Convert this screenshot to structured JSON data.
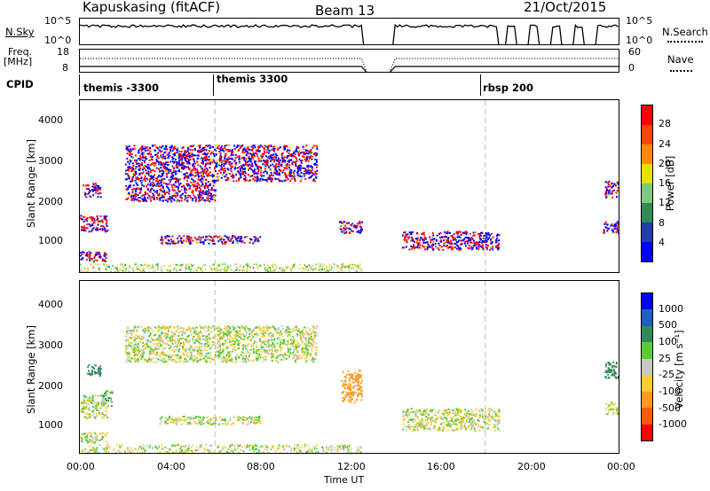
{
  "header": {
    "station": "Kapuskasing (fitACF)",
    "beam": "Beam 13",
    "date": "21/Oct/2015"
  },
  "top_panels": {
    "nsky_label": "N.Sky",
    "nsky_ticks": [
      "10^5",
      "10^0"
    ],
    "nsearch_label": "N.Search",
    "nsearch_ticks": [
      "10^5",
      "10^0"
    ],
    "freq_label_line1": "Freq.",
    "freq_label_line2": "[MHz]",
    "freq_ticks": [
      "18",
      "8"
    ],
    "nave_label": "Nave",
    "nave_ticks": [
      "60",
      "0"
    ],
    "cpid_label": "CPID",
    "cpid_entries": [
      "themis -3300",
      "themis 3300",
      "rbsp 200"
    ]
  },
  "axes": {
    "ylabel": "Slant Range [km]",
    "xlabel": "Time UT",
    "y_ticks": [
      "4000",
      "3000",
      "2000",
      "1000"
    ],
    "x_ticks": [
      "00:00",
      "04:00",
      "08:00",
      "12:00",
      "16:00",
      "20:00",
      "00:00"
    ]
  },
  "colorbars": {
    "power_label": "Power [dB]",
    "power_ticks": [
      "28",
      "24",
      "20",
      "16",
      "12",
      "8",
      "4"
    ],
    "power_colors": [
      "#0000ff",
      "#1f3fa6",
      "#2e8b57",
      "#7fc97f",
      "#e8e000",
      "#ff8c00",
      "#ff4500",
      "#ff0000"
    ],
    "velocity_label": "Velocity [m s⁻¹]",
    "velocity_ticks": [
      "1000",
      "500",
      "100",
      "25",
      "-25",
      "-100",
      "-500",
      "-1000"
    ],
    "velocity_colors": [
      "#0000ff",
      "#1f5fbf",
      "#2e8b57",
      "#55cc33",
      "#c8c8c0",
      "#ffcc33",
      "#ff9922",
      "#ff5a00",
      "#ff0000"
    ]
  },
  "chart_data": {
    "type": "heatmap",
    "x_range_hours": [
      0,
      24
    ],
    "y_range_km": [
      180,
      4500
    ],
    "cpid_change_times_hours": [
      6,
      18
    ],
    "data_gap_hours": [
      12.5,
      13.9
    ],
    "power_features": [
      {
        "t0": 0.0,
        "t1": 1.2,
        "r0": 500,
        "r1": 750,
        "power_db": 28
      },
      {
        "t0": 0.0,
        "t1": 1.2,
        "r0": 1250,
        "r1": 1650,
        "power_db": 20
      },
      {
        "t0": 0.1,
        "t1": 0.9,
        "r0": 2100,
        "r1": 2450,
        "power_db": 16
      },
      {
        "t0": 2.0,
        "t1": 6.0,
        "r0": 2000,
        "r1": 3400,
        "power_db": 6
      },
      {
        "t0": 6.0,
        "t1": 10.5,
        "r0": 2500,
        "r1": 3400,
        "power_db": 6
      },
      {
        "t0": 3.5,
        "t1": 8.0,
        "r0": 950,
        "r1": 1150,
        "power_db": 10
      },
      {
        "t0": 9.6,
        "t1": 10.2,
        "r0": 2700,
        "r1": 2900,
        "power_db": 12
      },
      {
        "t0": 11.5,
        "t1": 12.5,
        "r0": 1200,
        "r1": 1500,
        "power_db": 24
      },
      {
        "t0": 14.3,
        "t1": 18.6,
        "r0": 800,
        "r1": 1250,
        "power_db": 18
      },
      {
        "t0": 23.2,
        "t1": 24.0,
        "r0": 1200,
        "r1": 1500,
        "power_db": 20
      },
      {
        "t0": 23.3,
        "t1": 24.0,
        "r0": 2100,
        "r1": 2500,
        "power_db": 20
      }
    ],
    "velocity_features": [
      {
        "t0": 0.0,
        "t1": 1.2,
        "r0": 500,
        "r1": 750,
        "velocity": 0
      },
      {
        "t0": 0.0,
        "t1": 1.2,
        "r0": 1100,
        "r1": 1700,
        "velocity": 0
      },
      {
        "t0": 0.3,
        "t1": 0.9,
        "r0": 2150,
        "r1": 2450,
        "velocity": 300
      },
      {
        "t0": 1.0,
        "t1": 1.4,
        "r0": 1400,
        "r1": 1800,
        "velocity": 80
      },
      {
        "t0": 2.0,
        "t1": 10.5,
        "r0": 2500,
        "r1": 3400,
        "velocity": 0
      },
      {
        "t0": 3.5,
        "t1": 8.0,
        "r0": 950,
        "r1": 1150,
        "velocity": 0
      },
      {
        "t0": 11.6,
        "t1": 12.5,
        "r0": 1500,
        "r1": 2300,
        "velocity": -300
      },
      {
        "t0": 14.3,
        "t1": 18.6,
        "r0": 800,
        "r1": 1350,
        "velocity": 0
      },
      {
        "t0": 23.3,
        "t1": 24.0,
        "r0": 2100,
        "r1": 2500,
        "velocity": 300
      },
      {
        "t0": 23.3,
        "t1": 24.0,
        "r0": 1200,
        "r1": 1500,
        "velocity": 0
      }
    ]
  }
}
